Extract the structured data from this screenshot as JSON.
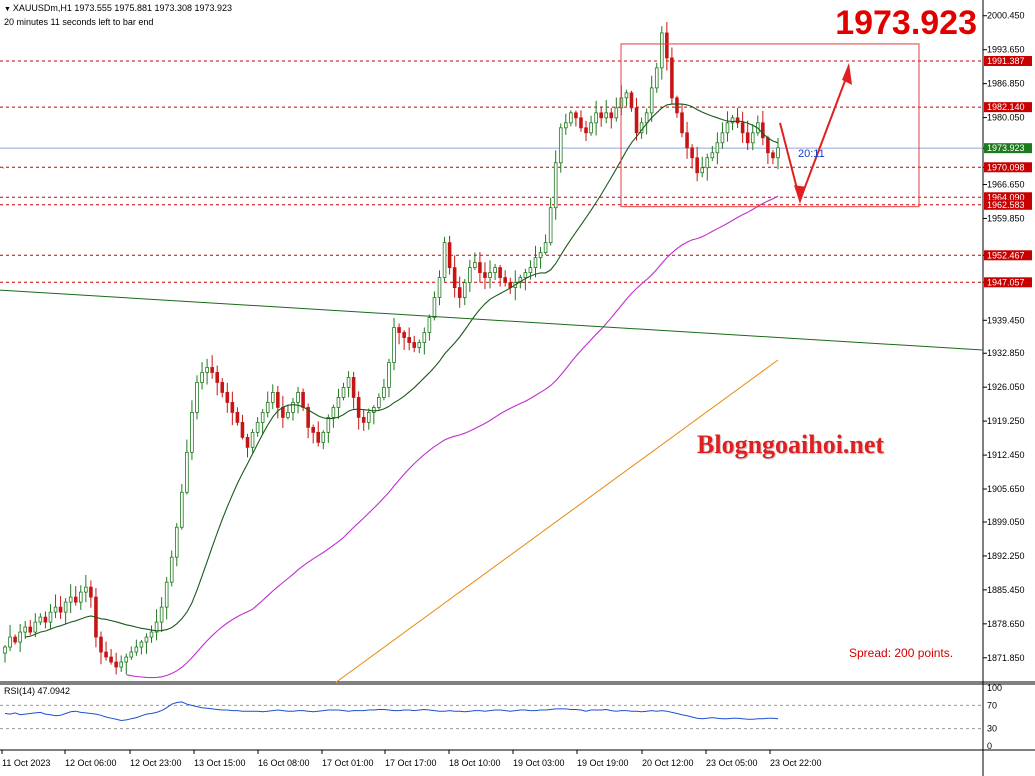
{
  "header": {
    "symbol_line": "XAUUSDm,H1  1973.555 1975.881 1973.308 1973.923",
    "timer_line": "20 minutes 11 seconds left to bar end"
  },
  "big_price": "1973.923",
  "watermark": "Blogngoaihoi.net",
  "spread": "Spread: 200 points.",
  "timer_label": "20:11",
  "colors": {
    "bull": "#1f7a1f",
    "bear": "#c81414",
    "level_line": "#c80000",
    "price_line": "#8fa8d8",
    "ma_short": "#1a5a1a",
    "ma_medium": "#c02fd0",
    "ma_long": "#e88a10",
    "trendline": "#1a6a1a",
    "box": "#e04040",
    "arrow": "#e02020",
    "rsi": "#1f4fd0"
  },
  "chart_data": [
    {
      "type": "candlestick",
      "symbol": "XAUUSDm",
      "timeframe": "H1",
      "ylim": [
        1867,
        2003
      ],
      "y_ticks": [
        "2000.450",
        "1993.650",
        "1986.850",
        "1980.050",
        "1973.923",
        "1970.098",
        "1966.650",
        "1959.850",
        "1952.467",
        "1947.057",
        "1939.450",
        "1932.850",
        "1926.050",
        "1919.250",
        "1912.450",
        "1905.650",
        "1899.050",
        "1892.250",
        "1885.450",
        "1878.650",
        "1871.850"
      ],
      "x_labels": [
        "11 Oct 2023",
        "12 Oct 06:00",
        "12 Oct 23:00",
        "13 Oct 15:00",
        "16 Oct 08:00",
        "17 Oct 01:00",
        "17 Oct 17:00",
        "18 Oct 10:00",
        "19 Oct 03:00",
        "19 Oct 19:00",
        "20 Oct 12:00",
        "23 Oct 05:00",
        "23 Oct 22:00"
      ],
      "levels": [
        {
          "label": "1991.387",
          "value": 1991.387
        },
        {
          "label": "1982.140",
          "value": 1982.14
        },
        {
          "label": "1970.098",
          "value": 1970.098
        },
        {
          "label": "1964.090",
          "value": 1964.09
        },
        {
          "label": "1962.583",
          "value": 1962.583
        },
        {
          "label": "1952.467",
          "value": 1952.467
        },
        {
          "label": "1947.057",
          "value": 1947.057
        }
      ],
      "current_price": {
        "label": "1973.923",
        "value": 1973.923
      },
      "closes": [
        1874,
        1876,
        1875,
        1877,
        1878,
        1877,
        1879,
        1880,
        1879,
        1881,
        1882,
        1881,
        1883,
        1884,
        1883,
        1885,
        1886,
        1884,
        1876,
        1873,
        1872,
        1871,
        1870,
        1871,
        1872,
        1873,
        1874,
        1875,
        1876,
        1877,
        1879,
        1882,
        1887,
        1892,
        1898,
        1905,
        1913,
        1921,
        1927,
        1929,
        1930,
        1929,
        1927,
        1925,
        1923,
        1921,
        1919,
        1916,
        1914,
        1917,
        1919,
        1921,
        1923,
        1925,
        1922,
        1920,
        1921,
        1923,
        1925,
        1922,
        1918,
        1917,
        1915,
        1917,
        1920,
        1922,
        1924,
        1926,
        1928,
        1924,
        1920,
        1919,
        1921,
        1922,
        1924,
        1926,
        1931,
        1938,
        1937,
        1936,
        1935,
        1934,
        1935,
        1937,
        1940,
        1944,
        1948,
        1955,
        1950,
        1946,
        1944,
        1947,
        1950,
        1951,
        1949,
        1948,
        1949,
        1950,
        1948,
        1947,
        1946,
        1947,
        1948,
        1949,
        1950,
        1952,
        1953,
        1955,
        1962,
        1971,
        1978,
        1979,
        1981,
        1980,
        1978,
        1977,
        1979,
        1981,
        1980,
        1981,
        1980,
        1982,
        1984,
        1985,
        1982,
        1977,
        1979,
        1981,
        1986,
        1990,
        1997,
        1992,
        1984,
        1981,
        1977,
        1974,
        1972,
        1969,
        1970,
        1972,
        1973,
        1975,
        1977,
        1979,
        1980,
        1979,
        1977,
        1975,
        1977,
        1979,
        1976,
        1973,
        1972,
        1974
      ],
      "rsi": {
        "label": "RSI(14) 47.0942",
        "levels": [
          70,
          30
        ],
        "axis_ticks": [
          "100",
          "70",
          "30",
          "0"
        ],
        "values": [
          56,
          55,
          57,
          54,
          55,
          56,
          57,
          58,
          55,
          54,
          52,
          53,
          56,
          59,
          60,
          58,
          57,
          56,
          55,
          53,
          50,
          48,
          46,
          44,
          45,
          47,
          49,
          52,
          55,
          56,
          58,
          61,
          66,
          72,
          75,
          76,
          72,
          70,
          68,
          66,
          65,
          64,
          63,
          62,
          62,
          61,
          61,
          60,
          60,
          60,
          60,
          59,
          60,
          61,
          62,
          61,
          60,
          60,
          61,
          61,
          60,
          59,
          60,
          61,
          62,
          62,
          62,
          61,
          60,
          61,
          61,
          61,
          62,
          62,
          63,
          63,
          62,
          61,
          61,
          62,
          62,
          61,
          62,
          63,
          62,
          61,
          60,
          60,
          61,
          60,
          60,
          59,
          60,
          61,
          61,
          60,
          61,
          62,
          62,
          61,
          60,
          61,
          62,
          62,
          61,
          61,
          62,
          62,
          63,
          64,
          64,
          64,
          63,
          63,
          62,
          60,
          62,
          62,
          62,
          63,
          61,
          60,
          61,
          61,
          60,
          60,
          59,
          60,
          61,
          60,
          61,
          60,
          58,
          56,
          54,
          52,
          50,
          48,
          47,
          48,
          49,
          48,
          47,
          47,
          48,
          48,
          47,
          46,
          46,
          47,
          47,
          48,
          48,
          47
        ]
      }
    }
  ]
}
